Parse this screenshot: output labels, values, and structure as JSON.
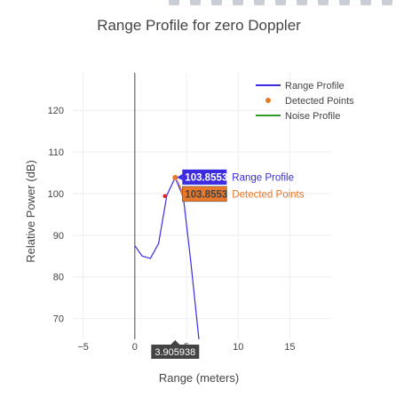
{
  "modebar": {
    "buttons": [
      "camera-icon",
      "zoom-icon",
      "pan-icon",
      "zoom-in-icon",
      "zoom-out-icon",
      "autoscale-icon",
      "reset-axes-icon",
      "spike-lines-icon",
      "hover-closest-icon",
      "hover-compare-icon",
      "plotly-logo-icon"
    ]
  },
  "chart_data": {
    "type": "line",
    "title": "Range Profile for zero Doppler",
    "xlabel": "Range (meters)",
    "ylabel": "Relative Power (dB)",
    "xlim": [
      -6,
      19
    ],
    "ylim": [
      65,
      129
    ],
    "xticks": [
      -5,
      0,
      5,
      10,
      15
    ],
    "yticks": [
      70,
      80,
      90,
      100,
      110,
      120
    ],
    "grid": true,
    "legend_position": "top-right",
    "series": [
      {
        "name": "Range Profile",
        "mode": "line",
        "color": "#3b2be0",
        "x": [
          0.0,
          0.7,
          1.5,
          2.3,
          3.1,
          3.906,
          4.7,
          5.4,
          6.2
        ],
        "y": [
          87.5,
          85.0,
          84.4,
          88.0,
          99.6,
          103.8553,
          99.0,
          84.0,
          65.0
        ]
      },
      {
        "name": "Detected Points",
        "mode": "markers",
        "color": "#e8782a",
        "x": [
          3.906
        ],
        "y": [
          103.8553
        ]
      },
      {
        "name": "Noise Profile",
        "mode": "line",
        "color": "#2e9a28",
        "x": [],
        "y": []
      }
    ],
    "extra_markers": [
      {
        "x": 2.9,
        "y": 99.4,
        "color": "#e02424"
      }
    ],
    "hover": {
      "x_label": "3.905938",
      "points": [
        {
          "value": "103.8553",
          "series": "Range Profile",
          "color": "#3b2be0"
        },
        {
          "value": "103.8553",
          "series": "Detected Points",
          "color": "#e8782a"
        }
      ]
    }
  }
}
